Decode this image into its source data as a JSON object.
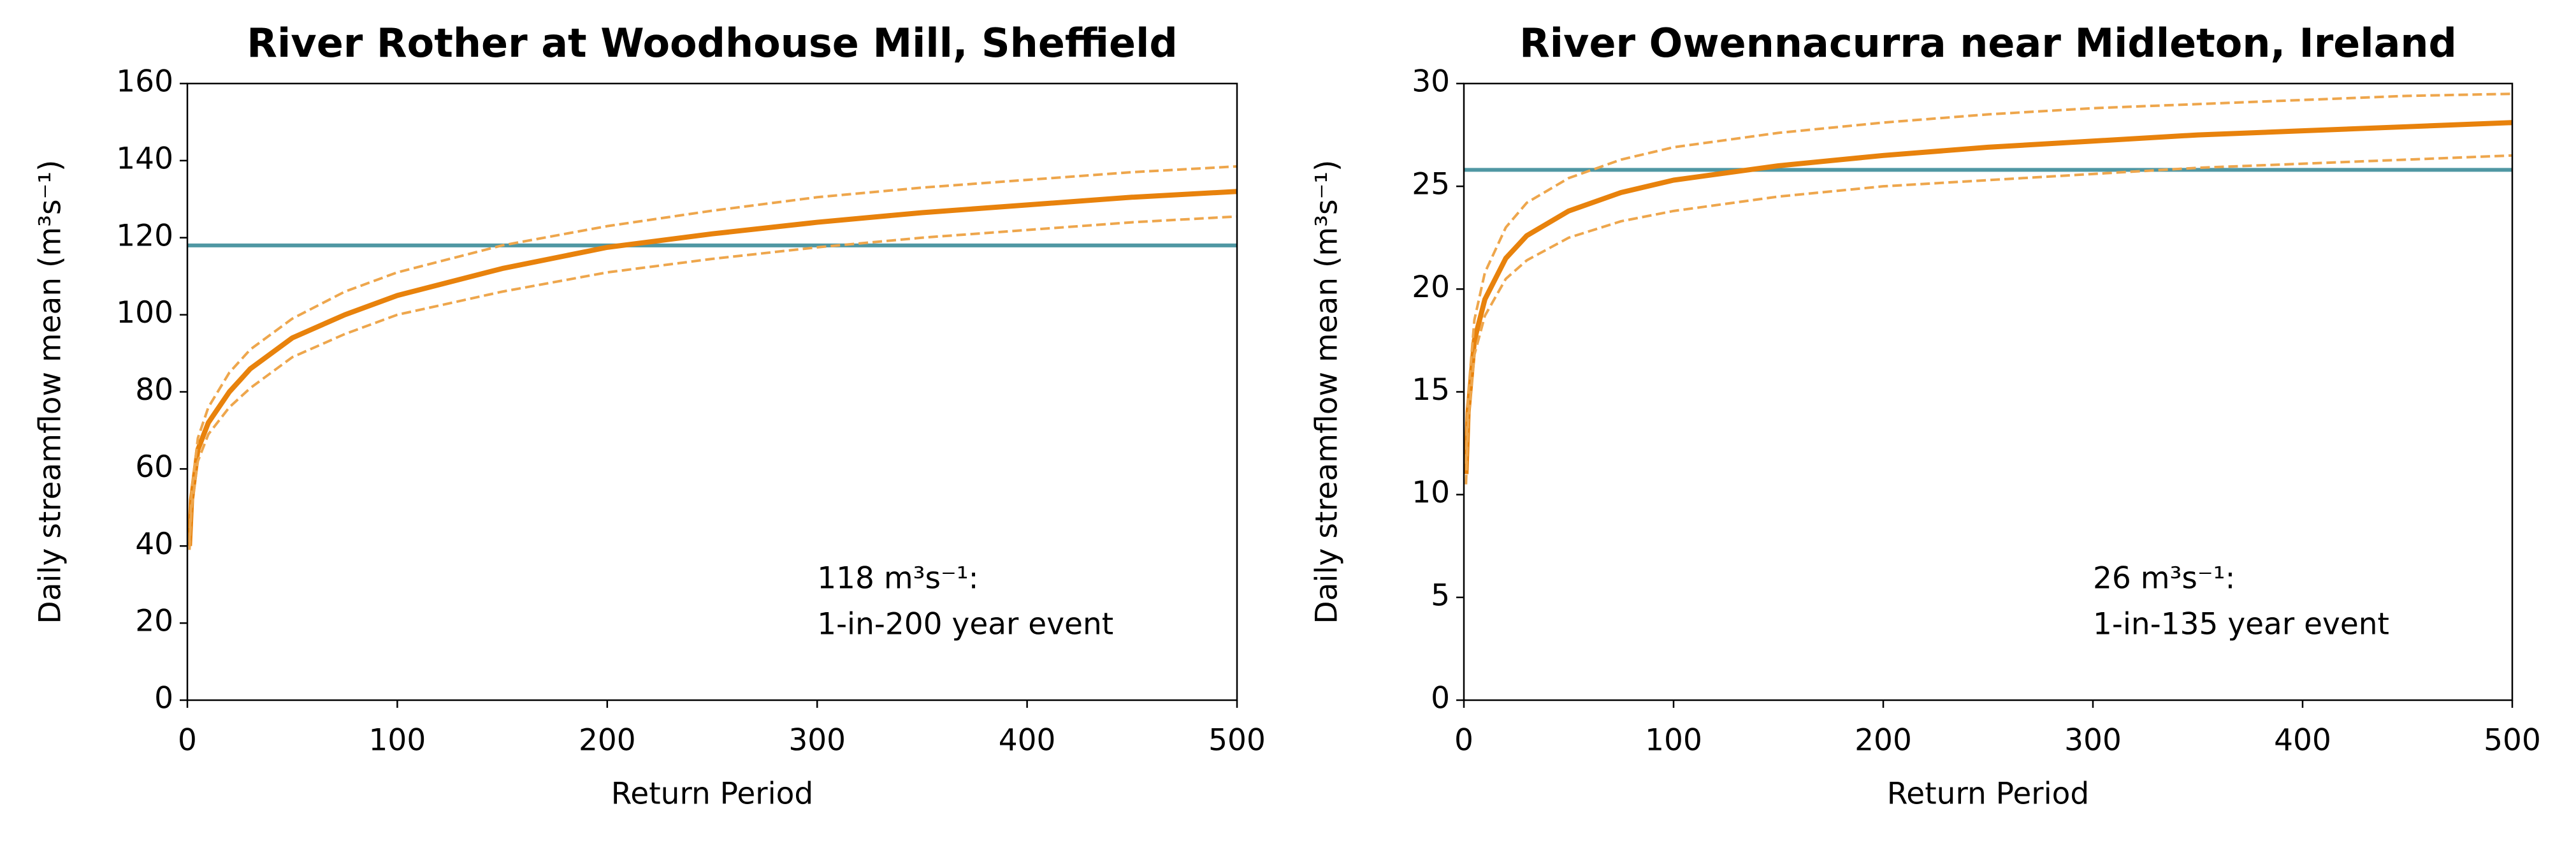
{
  "chart_data": [
    {
      "type": "line",
      "title": "River Rother at Woodhouse Mill, Sheffield",
      "xlabel": "Return Period",
      "ylabel": "Daily streamflow mean (m³s⁻¹)",
      "xlim": [
        0,
        500
      ],
      "xticks": [
        0,
        100,
        200,
        300,
        400,
        500
      ],
      "ylim": [
        0,
        160
      ],
      "yticks": [
        0,
        20,
        40,
        60,
        80,
        100,
        120,
        140,
        160
      ],
      "x": [
        1,
        2,
        5,
        10,
        20,
        30,
        50,
        75,
        100,
        150,
        200,
        250,
        300,
        350,
        400,
        450,
        500
      ],
      "series": [
        {
          "color": "#e8820c",
          "dashed": false,
          "values": [
            40,
            52,
            65,
            72,
            80,
            86,
            94,
            100,
            105,
            112,
            117.5,
            121,
            124,
            126.5,
            128.5,
            130.5,
            132
          ]
        },
        {
          "color": "#eea64c",
          "dashed": true,
          "values": [
            41,
            54,
            68,
            76,
            85,
            91,
            99,
            106,
            111,
            118,
            123,
            127,
            130.5,
            133,
            135,
            137,
            138.5
          ]
        },
        {
          "color": "#eea64c",
          "dashed": true,
          "values": [
            39,
            50,
            62,
            69,
            76,
            81,
            89,
            95,
            100,
            106,
            111,
            114.5,
            117.5,
            120,
            122,
            124,
            125.5
          ]
        }
      ],
      "hline": {
        "value": 118,
        "color": "#4f97a3"
      },
      "annotation": [
        "118 m³s⁻¹:",
        "1-in-200 year event"
      ]
    },
    {
      "type": "line",
      "title": "River Owennacurra near Midleton, Ireland",
      "xlabel": "Return Period",
      "ylabel": "Daily streamflow mean (m³s⁻¹)",
      "xlim": [
        0,
        500
      ],
      "xticks": [
        0,
        100,
        200,
        300,
        400,
        500
      ],
      "ylim": [
        0,
        30
      ],
      "yticks": [
        0,
        5,
        10,
        15,
        20,
        25,
        30
      ],
      "x": [
        1,
        2,
        5,
        10,
        20,
        30,
        50,
        75,
        100,
        150,
        200,
        250,
        300,
        350,
        400,
        450,
        500
      ],
      "series": [
        {
          "color": "#e8820c",
          "dashed": false,
          "values": [
            11,
            14,
            17.5,
            19.5,
            21.5,
            22.6,
            23.8,
            24.7,
            25.3,
            26,
            26.5,
            26.9,
            27.2,
            27.5,
            27.7,
            27.9,
            28.1
          ]
        },
        {
          "color": "#eea64c",
          "dashed": true,
          "values": [
            11.5,
            14.8,
            18.5,
            20.8,
            23,
            24.2,
            25.4,
            26.3,
            26.9,
            27.6,
            28.1,
            28.5,
            28.8,
            29,
            29.2,
            29.4,
            29.5
          ]
        },
        {
          "color": "#eea64c",
          "dashed": true,
          "values": [
            10.5,
            13.5,
            16.8,
            18.7,
            20.5,
            21.4,
            22.5,
            23.3,
            23.8,
            24.5,
            25,
            25.3,
            25.6,
            25.9,
            26.1,
            26.3,
            26.5
          ]
        }
      ],
      "hline": {
        "value": 25.8,
        "color": "#4f97a3"
      },
      "annotation": [
        "26 m³s⁻¹:",
        "1-in-135 year event"
      ]
    }
  ]
}
